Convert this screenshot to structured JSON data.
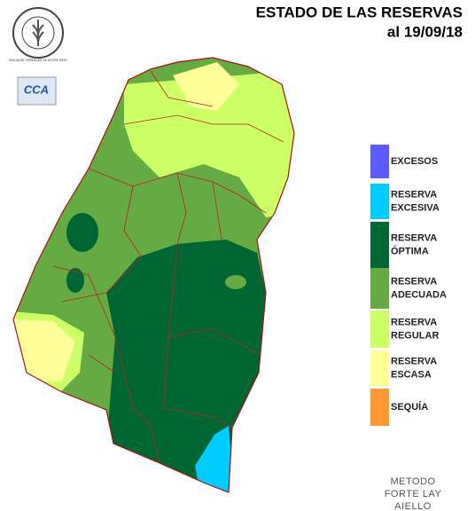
{
  "header": {
    "title": "ESTADO DE LAS RESERVAS",
    "date": "al 19/09/18"
  },
  "logos": {
    "bolsa": "BOLSA DE CEREALES DE ENTRE RIOS",
    "cca": "CCA"
  },
  "legend": {
    "items": [
      {
        "lines": [
          "EXCESOS"
        ],
        "color": "#5b5bff"
      },
      {
        "lines": [
          "RESERVA",
          "EXCESIVA"
        ],
        "color": "#00ccff"
      },
      {
        "lines": [
          "RESERVA",
          "ÓPTIMA"
        ],
        "color": "#006633"
      },
      {
        "lines": [
          "RESERVA",
          "ADECUADA"
        ],
        "color": "#66aa44"
      },
      {
        "lines": [
          "RESERVA",
          "REGULAR"
        ],
        "color": "#ccff66"
      },
      {
        "lines": [
          "RESERVA",
          "ESCASA"
        ],
        "color": "#ffff99"
      },
      {
        "lines": [
          "SEQUÍA"
        ],
        "color": "#ff9933"
      }
    ]
  },
  "footer": {
    "lines": [
      "METODO",
      "FORTE LAY",
      "AIELLO"
    ]
  }
}
